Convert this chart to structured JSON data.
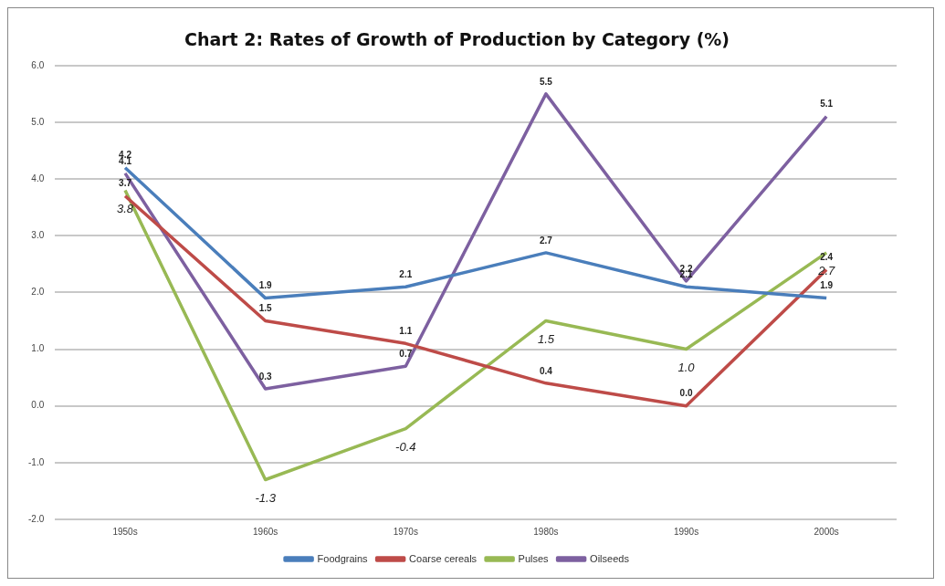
{
  "chart_data": {
    "type": "line",
    "title": "Chart 2: Rates of Growth of Production by Category (%)",
    "categories": [
      "1950s",
      "1960s",
      "1970s",
      "1980s",
      "1990s",
      "2000s"
    ],
    "series": [
      {
        "name": "Foodgrains",
        "color": "#4a7ebb",
        "values": [
          4.2,
          1.9,
          2.1,
          2.7,
          2.1,
          1.9
        ],
        "value_labels": [
          "4.2",
          "1.9",
          "2.1",
          "2.7",
          "2.1",
          "1.9"
        ]
      },
      {
        "name": "Coarse cereals",
        "color": "#be4b48",
        "values": [
          3.7,
          1.5,
          1.1,
          0.4,
          0.0,
          2.4
        ],
        "value_labels": [
          "3.7",
          "1.5",
          "1.1",
          "0.4",
          "0.0",
          "2.4"
        ]
      },
      {
        "name": "Pulses",
        "color": "#98b954",
        "values": [
          3.8,
          -1.3,
          -0.4,
          1.5,
          1.0,
          2.7
        ],
        "value_labels": [
          "3.8",
          "-1.3",
          "-0.4",
          "1.5",
          "1.0",
          "2.7"
        ]
      },
      {
        "name": "Oilseeds",
        "color": "#7d60a0",
        "values": [
          4.1,
          0.3,
          0.7,
          5.5,
          2.2,
          5.1
        ],
        "value_labels": [
          "4.1",
          "0.3",
          "0.7",
          "5.5",
          "2.2",
          "5.1"
        ]
      }
    ],
    "ylim": [
      -2,
      6
    ],
    "yticks": [
      {
        "value": -2,
        "label": "-2.0"
      },
      {
        "value": -1,
        "label": "-1.0"
      },
      {
        "value": 0,
        "label": "0.0"
      },
      {
        "value": 1,
        "label": "1.0"
      },
      {
        "value": 2,
        "label": "2.0"
      },
      {
        "value": 3,
        "label": "3.0"
      },
      {
        "value": 4,
        "label": "4.0"
      },
      {
        "value": 5,
        "label": "5.0"
      },
      {
        "value": 6,
        "label": "6.0"
      }
    ],
    "grid": "y",
    "legend": "bottom",
    "marker": "none",
    "line_style": "solid"
  }
}
